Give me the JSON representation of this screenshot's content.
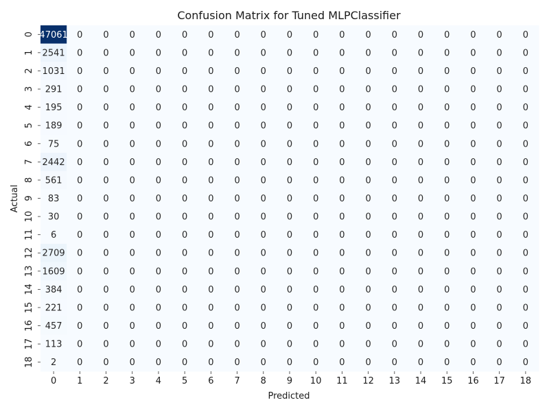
{
  "chart_data": {
    "type": "heatmap",
    "title": "Confusion Matrix for Tuned MLPClassifier",
    "xlabel": "Predicted",
    "ylabel": "Actual",
    "x_categories": [
      "0",
      "1",
      "2",
      "3",
      "4",
      "5",
      "6",
      "7",
      "8",
      "9",
      "10",
      "11",
      "12",
      "13",
      "14",
      "15",
      "16",
      "17",
      "18"
    ],
    "y_categories": [
      "0",
      "1",
      "2",
      "3",
      "4",
      "5",
      "6",
      "7",
      "8",
      "9",
      "10",
      "11",
      "12",
      "13",
      "14",
      "15",
      "16",
      "17",
      "18"
    ],
    "colormap": "Blues",
    "colorbar": false,
    "values": [
      [
        47061,
        0,
        0,
        0,
        0,
        0,
        0,
        0,
        0,
        0,
        0,
        0,
        0,
        0,
        0,
        0,
        0,
        0,
        0
      ],
      [
        2541,
        0,
        0,
        0,
        0,
        0,
        0,
        0,
        0,
        0,
        0,
        0,
        0,
        0,
        0,
        0,
        0,
        0,
        0
      ],
      [
        1031,
        0,
        0,
        0,
        0,
        0,
        0,
        0,
        0,
        0,
        0,
        0,
        0,
        0,
        0,
        0,
        0,
        0,
        0
      ],
      [
        291,
        0,
        0,
        0,
        0,
        0,
        0,
        0,
        0,
        0,
        0,
        0,
        0,
        0,
        0,
        0,
        0,
        0,
        0
      ],
      [
        195,
        0,
        0,
        0,
        0,
        0,
        0,
        0,
        0,
        0,
        0,
        0,
        0,
        0,
        0,
        0,
        0,
        0,
        0
      ],
      [
        189,
        0,
        0,
        0,
        0,
        0,
        0,
        0,
        0,
        0,
        0,
        0,
        0,
        0,
        0,
        0,
        0,
        0,
        0
      ],
      [
        75,
        0,
        0,
        0,
        0,
        0,
        0,
        0,
        0,
        0,
        0,
        0,
        0,
        0,
        0,
        0,
        0,
        0,
        0
      ],
      [
        2442,
        0,
        0,
        0,
        0,
        0,
        0,
        0,
        0,
        0,
        0,
        0,
        0,
        0,
        0,
        0,
        0,
        0,
        0
      ],
      [
        561,
        0,
        0,
        0,
        0,
        0,
        0,
        0,
        0,
        0,
        0,
        0,
        0,
        0,
        0,
        0,
        0,
        0,
        0
      ],
      [
        83,
        0,
        0,
        0,
        0,
        0,
        0,
        0,
        0,
        0,
        0,
        0,
        0,
        0,
        0,
        0,
        0,
        0,
        0
      ],
      [
        30,
        0,
        0,
        0,
        0,
        0,
        0,
        0,
        0,
        0,
        0,
        0,
        0,
        0,
        0,
        0,
        0,
        0,
        0
      ],
      [
        6,
        0,
        0,
        0,
        0,
        0,
        0,
        0,
        0,
        0,
        0,
        0,
        0,
        0,
        0,
        0,
        0,
        0,
        0
      ],
      [
        2709,
        0,
        0,
        0,
        0,
        0,
        0,
        0,
        0,
        0,
        0,
        0,
        0,
        0,
        0,
        0,
        0,
        0,
        0
      ],
      [
        1609,
        0,
        0,
        0,
        0,
        0,
        0,
        0,
        0,
        0,
        0,
        0,
        0,
        0,
        0,
        0,
        0,
        0,
        0
      ],
      [
        384,
        0,
        0,
        0,
        0,
        0,
        0,
        0,
        0,
        0,
        0,
        0,
        0,
        0,
        0,
        0,
        0,
        0,
        0
      ],
      [
        221,
        0,
        0,
        0,
        0,
        0,
        0,
        0,
        0,
        0,
        0,
        0,
        0,
        0,
        0,
        0,
        0,
        0,
        0
      ],
      [
        457,
        0,
        0,
        0,
        0,
        0,
        0,
        0,
        0,
        0,
        0,
        0,
        0,
        0,
        0,
        0,
        0,
        0,
        0
      ],
      [
        113,
        0,
        0,
        0,
        0,
        0,
        0,
        0,
        0,
        0,
        0,
        0,
        0,
        0,
        0,
        0,
        0,
        0,
        0
      ],
      [
        2,
        0,
        0,
        0,
        0,
        0,
        0,
        0,
        0,
        0,
        0,
        0,
        0,
        0,
        0,
        0,
        0,
        0,
        0
      ]
    ]
  }
}
